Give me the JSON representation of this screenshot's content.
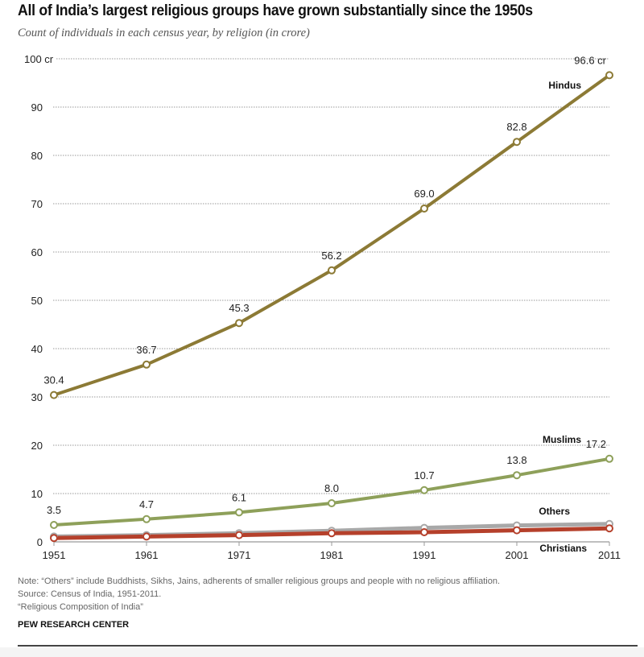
{
  "chart_data": {
    "type": "line",
    "title": "All of India’s largest religious groups have grown substantially since the 1950s",
    "subtitle": "Count of individuals in each census year, by religion (in crore)",
    "xlabel": "",
    "ylabel": "",
    "x": [
      1951,
      1961,
      1971,
      1981,
      1991,
      2001,
      2011
    ],
    "x_tick_labels": [
      "1951",
      "1961",
      "1971",
      "1981",
      "1991",
      "2001",
      "2011"
    ],
    "ylim": [
      0,
      100
    ],
    "y_ticks": [
      0,
      10,
      20,
      30,
      40,
      50,
      60,
      70,
      80,
      90,
      100
    ],
    "y_tick_labels": [
      "0",
      "10",
      "20",
      "30",
      "40",
      "50",
      "60",
      "70",
      "80",
      "90",
      "100 cr"
    ],
    "grid": true,
    "legend": "inline labels at right end of lines",
    "series": [
      {
        "name": "Hindus",
        "color": "#8c7a35",
        "values": [
          30.4,
          36.7,
          45.3,
          56.2,
          69.0,
          82.8,
          96.6
        ],
        "data_labels": [
          "30.4",
          "36.7",
          "45.3",
          "56.2",
          "69.0",
          "82.8",
          "96.6 cr"
        ]
      },
      {
        "name": "Muslims",
        "color": "#8ea05a",
        "values": [
          3.5,
          4.7,
          6.1,
          8.0,
          10.7,
          13.8,
          17.2
        ],
        "data_labels": [
          "3.5",
          "4.7",
          "6.1",
          "8.0",
          "10.7",
          "13.8",
          "17.2"
        ]
      },
      {
        "name": "Others",
        "color": "#a8a8a8",
        "values": [
          1.1,
          1.4,
          1.8,
          2.3,
          2.9,
          3.4,
          3.7
        ],
        "data_labels": []
      },
      {
        "name": "Christians",
        "color": "#b5402b",
        "values": [
          0.8,
          1.1,
          1.4,
          1.8,
          2.0,
          2.4,
          2.8
        ],
        "data_labels": []
      }
    ]
  },
  "header": {
    "title": "All of India’s largest religious groups have grown substantially since the 1950s",
    "subtitle": "Count of individuals in each census year, by religion (in crore)"
  },
  "footer": {
    "note": "Note: “Others” include Buddhists, Sikhs, Jains, adherents of smaller religious groups and people with no religious affiliation.",
    "source": "Source: Census of India, 1951-2011.",
    "report": "“Religious Composition of India”",
    "brand": "PEW RESEARCH CENTER"
  }
}
